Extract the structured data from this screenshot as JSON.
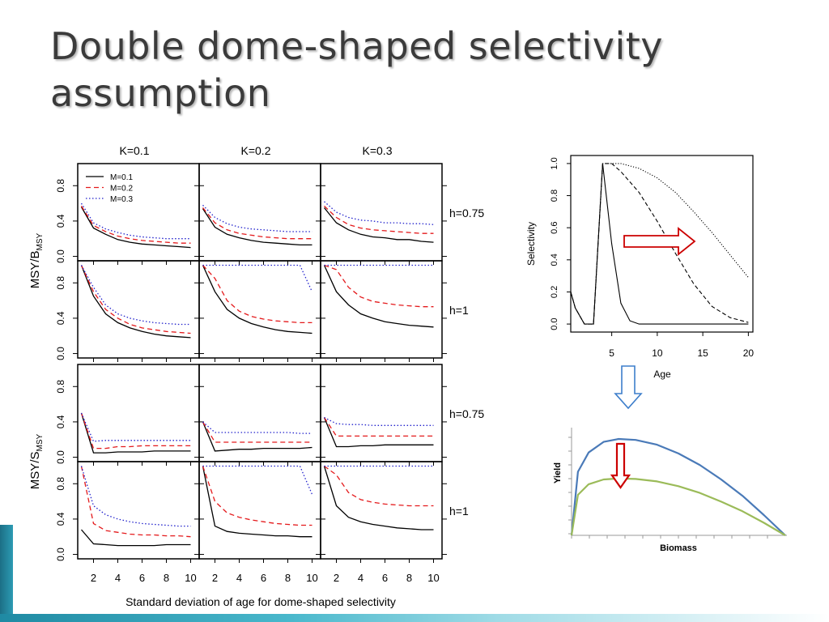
{
  "slide": {
    "title": "Double dome-shaped selectivity assumption"
  },
  "chart_data": [
    {
      "type": "line",
      "id": "msy-grid",
      "column_labels": [
        "K=0.1",
        "K=0.2",
        "K=0.3"
      ],
      "row_labels": [
        "h=0.75",
        "h=1",
        "h=0.75",
        "h=1"
      ],
      "ylabel_top": {
        "main": "MSY/B",
        "sub": "MSY"
      },
      "ylabel_bottom": {
        "main": "MSY/S",
        "sub": "MSY"
      },
      "xlabel": "Standard deviation of age for dome-shaped selectivity",
      "x": [
        1,
        2,
        3,
        4,
        5,
        6,
        7,
        8,
        9,
        10
      ],
      "x_ticks": [
        "2",
        "4",
        "6",
        "8",
        "10"
      ],
      "y_ticks": [
        "0.0",
        "0.4",
        "0.8"
      ],
      "xlim": [
        0.7,
        10.7
      ],
      "ylim": [
        -0.05,
        1.05
      ],
      "legend": {
        "position": "top-left",
        "entries": [
          "M=0.1",
          "M=0.2",
          "M=0.3"
        ]
      },
      "series_styles": [
        {
          "label": "M=0.1",
          "color": "#000000",
          "dash": "solid"
        },
        {
          "label": "M=0.2",
          "color": "#e41a1c",
          "dash": "dashed"
        },
        {
          "label": "M=0.3",
          "color": "#2222cc",
          "dash": "dotted"
        }
      ],
      "panels": [
        [
          [
            [
              0.56,
              0.32,
              0.25,
              0.19,
              0.16,
              0.14,
              0.13,
              0.12,
              0.11,
              0.1
            ],
            [
              0.57,
              0.35,
              0.28,
              0.23,
              0.2,
              0.18,
              0.17,
              0.16,
              0.15,
              0.15
            ],
            [
              0.6,
              0.38,
              0.31,
              0.27,
              0.24,
              0.22,
              0.21,
              0.2,
              0.2,
              0.2
            ]
          ],
          [
            [
              0.54,
              0.33,
              0.25,
              0.21,
              0.18,
              0.16,
              0.15,
              0.14,
              0.13,
              0.13
            ],
            [
              0.55,
              0.38,
              0.3,
              0.26,
              0.24,
              0.22,
              0.21,
              0.2,
              0.2,
              0.2
            ],
            [
              0.58,
              0.44,
              0.37,
              0.33,
              0.31,
              0.3,
              0.29,
              0.28,
              0.28,
              0.28
            ]
          ],
          [
            [
              0.55,
              0.38,
              0.3,
              0.25,
              0.22,
              0.21,
              0.19,
              0.19,
              0.17,
              0.16
            ],
            [
              0.57,
              0.44,
              0.36,
              0.32,
              0.3,
              0.29,
              0.28,
              0.27,
              0.26,
              0.26
            ],
            [
              0.62,
              0.5,
              0.44,
              0.41,
              0.4,
              0.38,
              0.38,
              0.37,
              0.37,
              0.36
            ]
          ]
        ],
        [
          [
            [
              1.0,
              0.65,
              0.45,
              0.35,
              0.29,
              0.25,
              0.22,
              0.2,
              0.19,
              0.18
            ],
            [
              1.0,
              0.7,
              0.5,
              0.4,
              0.33,
              0.29,
              0.27,
              0.25,
              0.24,
              0.23
            ],
            [
              1.0,
              0.75,
              0.55,
              0.45,
              0.4,
              0.37,
              0.35,
              0.34,
              0.33,
              0.33
            ]
          ],
          [
            [
              1.0,
              0.7,
              0.5,
              0.4,
              0.34,
              0.3,
              0.27,
              0.25,
              0.24,
              0.23
            ],
            [
              1.0,
              0.85,
              0.6,
              0.48,
              0.42,
              0.39,
              0.37,
              0.36,
              0.35,
              0.35
            ],
            [
              1.0,
              1.0,
              1.0,
              1.0,
              1.0,
              1.0,
              1.0,
              1.0,
              1.0,
              0.7
            ]
          ],
          [
            [
              1.0,
              0.7,
              0.55,
              0.45,
              0.4,
              0.36,
              0.34,
              0.32,
              0.31,
              0.3
            ],
            [
              1.0,
              0.95,
              0.75,
              0.64,
              0.59,
              0.57,
              0.55,
              0.54,
              0.53,
              0.53
            ],
            [
              1.0,
              1.0,
              1.0,
              1.0,
              1.0,
              1.0,
              1.0,
              1.0,
              1.0,
              1.0
            ]
          ]
        ],
        [
          [
            [
              0.5,
              0.05,
              0.05,
              0.06,
              0.06,
              0.06,
              0.07,
              0.07,
              0.07,
              0.07
            ],
            [
              0.5,
              0.1,
              0.1,
              0.12,
              0.12,
              0.13,
              0.13,
              0.13,
              0.13,
              0.13
            ],
            [
              0.5,
              0.18,
              0.19,
              0.19,
              0.19,
              0.19,
              0.19,
              0.19,
              0.19,
              0.19
            ]
          ],
          [
            [
              0.4,
              0.07,
              0.08,
              0.09,
              0.09,
              0.1,
              0.1,
              0.1,
              0.1,
              0.11
            ],
            [
              0.4,
              0.17,
              0.17,
              0.17,
              0.17,
              0.17,
              0.17,
              0.17,
              0.17,
              0.17
            ],
            [
              0.4,
              0.28,
              0.28,
              0.28,
              0.28,
              0.28,
              0.28,
              0.28,
              0.27,
              0.27
            ]
          ],
          [
            [
              0.45,
              0.12,
              0.12,
              0.13,
              0.13,
              0.14,
              0.14,
              0.14,
              0.14,
              0.14
            ],
            [
              0.45,
              0.24,
              0.24,
              0.24,
              0.24,
              0.24,
              0.24,
              0.24,
              0.24,
              0.24
            ],
            [
              0.45,
              0.38,
              0.37,
              0.37,
              0.36,
              0.36,
              0.36,
              0.36,
              0.36,
              0.36
            ]
          ]
        ],
        [
          [
            [
              0.28,
              0.12,
              0.11,
              0.1,
              0.1,
              0.1,
              0.1,
              0.11,
              0.11,
              0.11
            ],
            [
              1.0,
              0.35,
              0.27,
              0.25,
              0.23,
              0.22,
              0.22,
              0.21,
              0.21,
              0.2
            ],
            [
              1.0,
              0.55,
              0.45,
              0.4,
              0.37,
              0.35,
              0.34,
              0.33,
              0.32,
              0.32
            ]
          ],
          [
            [
              1.0,
              0.32,
              0.26,
              0.24,
              0.23,
              0.22,
              0.21,
              0.21,
              0.2,
              0.2
            ],
            [
              1.0,
              0.6,
              0.47,
              0.42,
              0.39,
              0.37,
              0.35,
              0.34,
              0.33,
              0.33
            ],
            [
              1.0,
              1.0,
              1.0,
              1.0,
              1.0,
              1.0,
              1.0,
              1.0,
              1.0,
              0.68
            ]
          ],
          [
            [
              1.0,
              0.55,
              0.42,
              0.37,
              0.34,
              0.32,
              0.3,
              0.29,
              0.28,
              0.28
            ],
            [
              1.0,
              0.9,
              0.7,
              0.62,
              0.59,
              0.57,
              0.56,
              0.55,
              0.55,
              0.55
            ],
            [
              1.0,
              1.0,
              1.0,
              1.0,
              1.0,
              1.0,
              1.0,
              1.0,
              1.0,
              1.0
            ]
          ]
        ]
      ]
    },
    {
      "type": "line",
      "id": "selectivity-curves",
      "xlabel": "Age",
      "ylabel": "Selectivity",
      "xlim": [
        0.5,
        20.5
      ],
      "ylim": [
        -0.05,
        1.05
      ],
      "x_ticks": [
        5,
        10,
        15,
        20
      ],
      "y_ticks": [
        "0.0",
        "0.2",
        "0.4",
        "0.6",
        "0.8",
        "1.0"
      ],
      "annotation": "red outline arrow pointing right",
      "series": [
        {
          "style": "solid",
          "x": [
            0.5,
            1,
            2,
            3,
            4,
            5,
            6,
            7,
            8,
            10,
            15,
            20
          ],
          "y": [
            0.2,
            0.1,
            0.0,
            0.0,
            1.0,
            0.5,
            0.13,
            0.02,
            0.0,
            0.0,
            0.0,
            0.0
          ]
        },
        {
          "style": "dashed",
          "x": [
            0.5,
            1,
            2,
            3,
            4,
            5,
            6,
            8,
            10,
            12,
            14,
            16,
            18,
            20
          ],
          "y": [
            0.2,
            0.1,
            0.0,
            0.0,
            1.0,
            1.0,
            0.95,
            0.82,
            0.64,
            0.44,
            0.25,
            0.11,
            0.04,
            0.01
          ]
        },
        {
          "style": "dotted",
          "x": [
            0.5,
            1,
            2,
            3,
            4,
            5,
            6,
            8,
            10,
            12,
            14,
            16,
            18,
            20
          ],
          "y": [
            0.2,
            0.1,
            0.0,
            0.0,
            1.0,
            1.0,
            1.0,
            0.97,
            0.91,
            0.82,
            0.7,
            0.57,
            0.43,
            0.29
          ]
        }
      ]
    },
    {
      "type": "line",
      "id": "yield-biomass",
      "xlabel": "Biomass",
      "ylabel": "Yield",
      "annotation": "red outline arrow pointing down",
      "series": [
        {
          "color": "#4a7ab8",
          "x": [
            0,
            0.03,
            0.08,
            0.15,
            0.22,
            0.3,
            0.4,
            0.5,
            0.6,
            0.7,
            0.8,
            0.9,
            1.0
          ],
          "y": [
            0,
            0.66,
            0.86,
            0.97,
            1.0,
            0.99,
            0.94,
            0.85,
            0.73,
            0.58,
            0.41,
            0.21,
            0
          ]
        },
        {
          "color": "#9bbb59",
          "x": [
            0,
            0.03,
            0.08,
            0.15,
            0.22,
            0.3,
            0.4,
            0.5,
            0.6,
            0.7,
            0.8,
            0.9,
            1.0
          ],
          "y": [
            0,
            0.42,
            0.53,
            0.58,
            0.59,
            0.585,
            0.56,
            0.51,
            0.44,
            0.35,
            0.25,
            0.13,
            0
          ]
        }
      ]
    }
  ]
}
